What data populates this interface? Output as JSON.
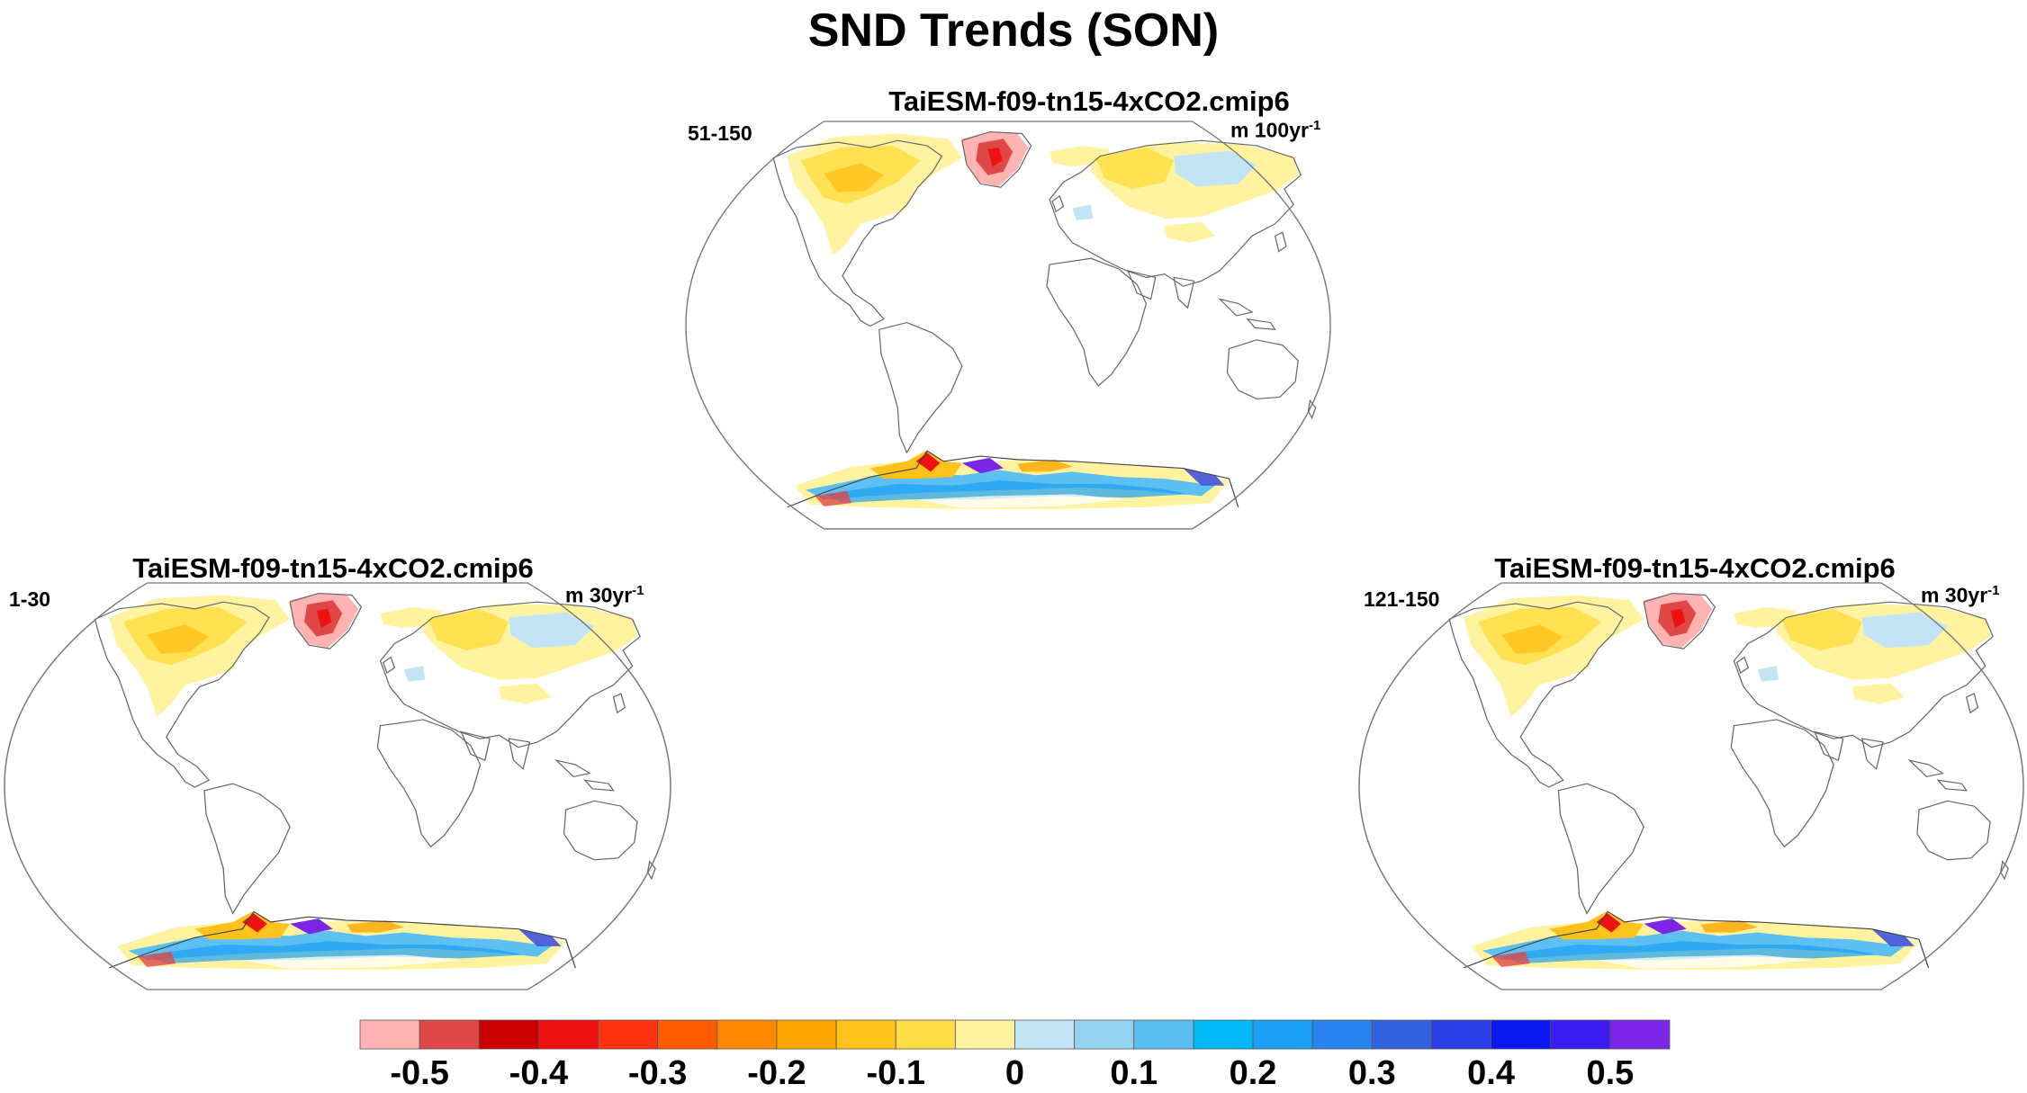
{
  "title": "SND Trends (SON)",
  "panels": [
    {
      "id": "top",
      "model": "TaiESM-f09-tn15-4xCO2.cmip6",
      "period": "51-150",
      "units": "m 100yr",
      "units_exp": "-1"
    },
    {
      "id": "left",
      "model": "TaiESM-f09-tn15-4xCO2.cmip6",
      "period": "1-30",
      "units": "m 30yr",
      "units_exp": "-1"
    },
    {
      "id": "right",
      "model": "TaiESM-f09-tn15-4xCO2.cmip6",
      "period": "121-150",
      "units": "m 30yr",
      "units_exp": "-1"
    }
  ],
  "colorbar": {
    "colors": [
      "#ffb3b3",
      "#e04848",
      "#cc0000",
      "#ee1111",
      "#ff3311",
      "#ff5a00",
      "#ff8a00",
      "#ffa500",
      "#ffc21a",
      "#ffdd44",
      "#fff3a0",
      "#c2e4f5",
      "#96d2f2",
      "#5ec0f2",
      "#00b8f5",
      "#1aa0f5",
      "#2a82ee",
      "#3262e0",
      "#2b3ee6",
      "#0a18f0",
      "#3a1cf0",
      "#7a25e8"
    ],
    "labels": [
      "-0.5",
      "-0.4",
      "-0.3",
      "-0.2",
      "-0.1",
      "0",
      "0.1",
      "0.2",
      "0.3",
      "0.4",
      "0.5"
    ]
  }
}
